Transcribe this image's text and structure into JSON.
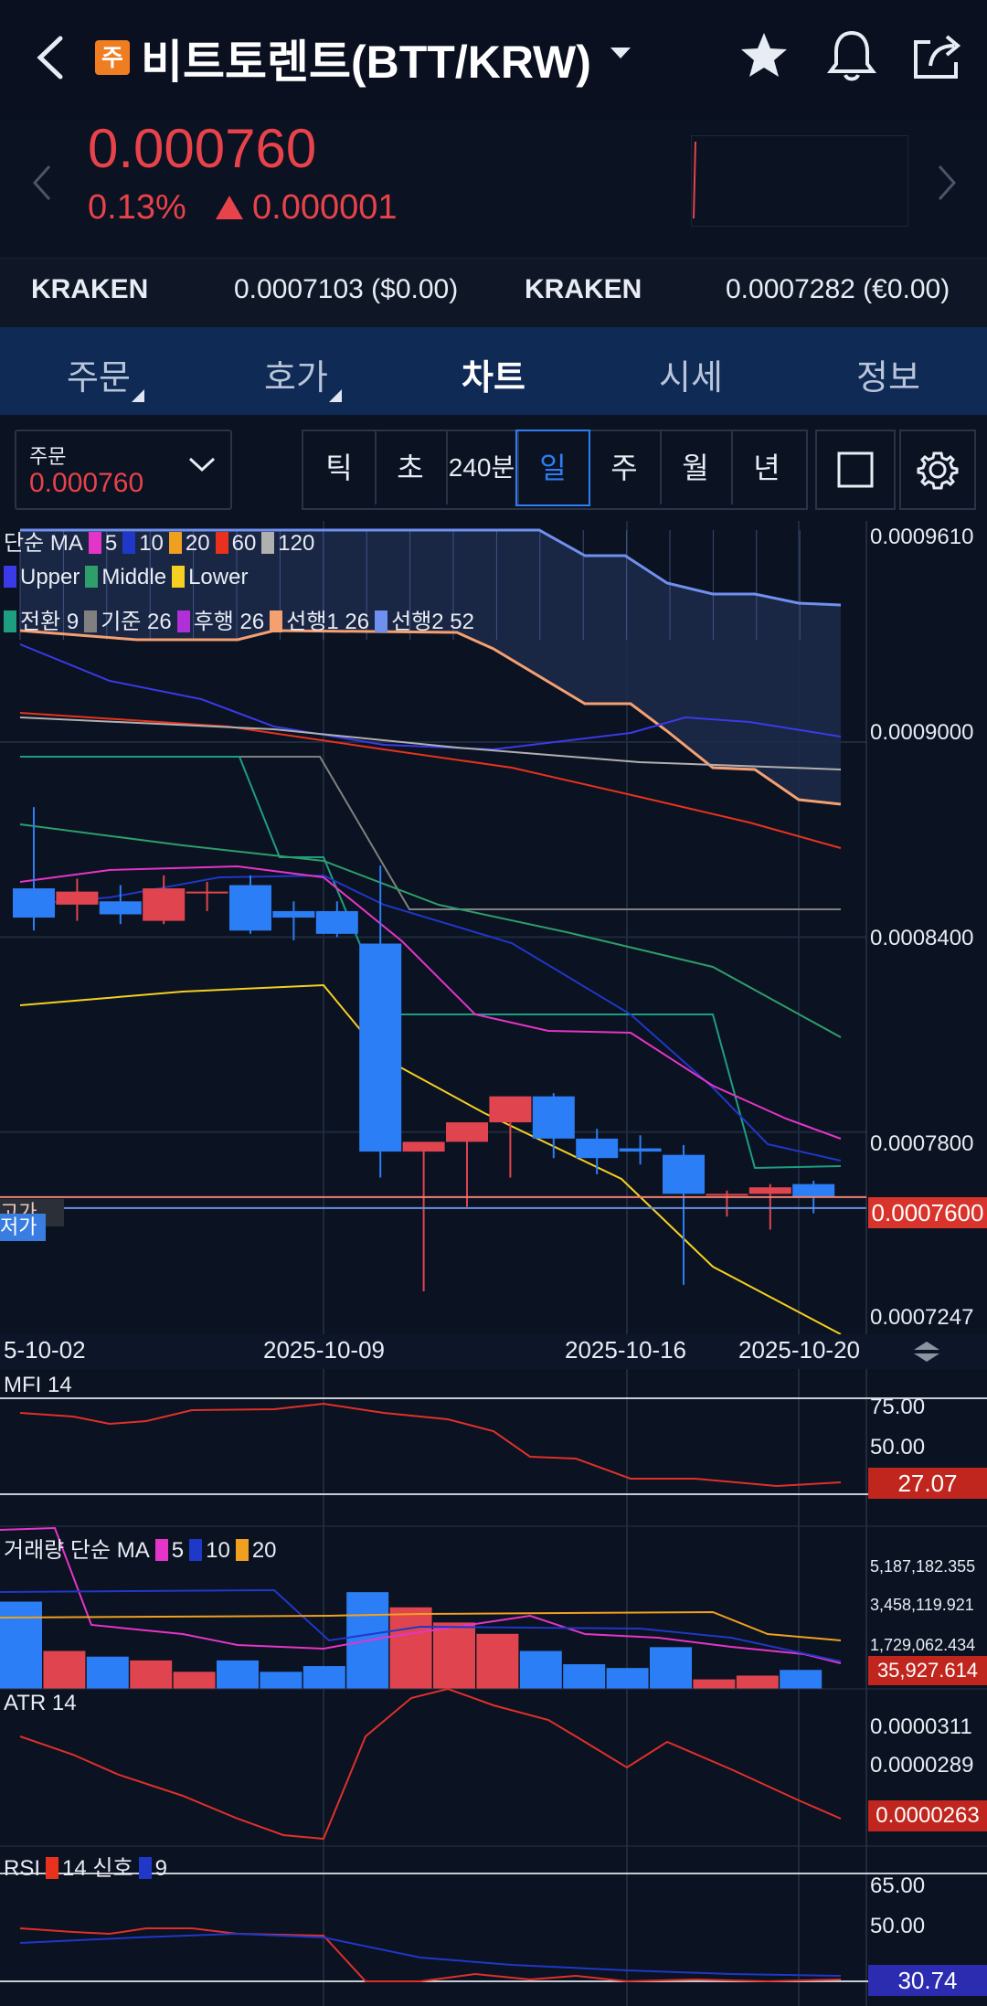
{
  "header": {
    "badge": "주",
    "title": "비트토렌트(BTT/KRW)",
    "icons": [
      "back-icon",
      "dropdown-icon",
      "star-icon",
      "bell-icon",
      "share-icon"
    ]
  },
  "price": {
    "current": "0.000760",
    "change_pct": "0.13%",
    "change_abs": "0.000001",
    "color_up": "#e8424a"
  },
  "exchanges": [
    {
      "name": "KRAKEN",
      "value": "0.0007103 ($0.00)"
    },
    {
      "name": "KRAKEN",
      "value": "0.0007282 (€0.00)"
    }
  ],
  "tabs": [
    "주문",
    "호가",
    "차트",
    "시세",
    "정보"
  ],
  "active_tab": "차트",
  "order": {
    "label": "주문",
    "value": "0.000760"
  },
  "periods": [
    "틱",
    "초",
    "240분",
    "일",
    "주",
    "월",
    "년"
  ],
  "selected_period": "일",
  "legend": {
    "ma_title": "단순 MA",
    "ma": [
      {
        "label": "5",
        "color": "#e535c8"
      },
      {
        "label": "10",
        "color": "#1f38c8"
      },
      {
        "label": "20",
        "color": "#f0a020"
      },
      {
        "label": "60",
        "color": "#e8321e"
      },
      {
        "label": "120",
        "color": "#b0b0b0"
      }
    ],
    "bb": [
      {
        "label": "Upper",
        "color": "#3a3ae8"
      },
      {
        "label": "Middle",
        "color": "#2e9e6a"
      },
      {
        "label": "Lower",
        "color": "#f5d020"
      }
    ],
    "ichi": [
      {
        "label": "전환 9",
        "color": "#1e9e80"
      },
      {
        "label": "기준 26",
        "color": "#808080"
      },
      {
        "label": "후행 26",
        "color": "#b030d8"
      },
      {
        "label": "선행1 26",
        "color": "#f5a070"
      },
      {
        "label": "선행2 52",
        "color": "#7090f0"
      }
    ]
  },
  "price_axis": [
    "0.0009610",
    "0.0009000",
    "0.0008400",
    "0.0007800",
    "0.0007247"
  ],
  "current_price_label": "0.0007600",
  "marker_labels": {
    "high": "고가",
    "low": "저가"
  },
  "date_axis": [
    "5-10-02",
    "2025-10-09",
    "2025-10-16",
    "2025-10-20"
  ],
  "indicators": {
    "mfi": {
      "title": "MFI 14",
      "levels": [
        "75.00",
        "50.00"
      ],
      "current": "27.07"
    },
    "volume": {
      "title": "거래량 단순 MA",
      "ma": [
        {
          "label": "5",
          "color": "#e535c8"
        },
        {
          "label": "10",
          "color": "#1f38c8"
        },
        {
          "label": "20",
          "color": "#f0a020"
        }
      ],
      "levels": [
        "5,187,182.355",
        "3,458,119.921",
        "1,729,062.434"
      ],
      "current": "35,927.614"
    },
    "atr": {
      "title": "ATR 14",
      "levels": [
        "0.0000311",
        "0.0000289"
      ],
      "current": "0.0000263"
    },
    "rsi": {
      "title": "RSI",
      "parts": [
        "14",
        "신호",
        "9"
      ],
      "levels": [
        "65.00",
        "50.00"
      ],
      "current": "30.74"
    }
  },
  "chart_data": {
    "type": "candlestick",
    "candles": [
      {
        "o": 0.000855,
        "h": 0.00088,
        "l": 0.000842,
        "c": 0.000846
      },
      {
        "o": 0.00085,
        "h": 0.000858,
        "l": 0.000845,
        "c": 0.000854
      },
      {
        "o": 0.000851,
        "h": 0.000856,
        "l": 0.000844,
        "c": 0.000847
      },
      {
        "o": 0.000845,
        "h": 0.000859,
        "l": 0.000844,
        "c": 0.000855
      },
      {
        "o": 0.000854,
        "h": 0.000857,
        "l": 0.000848,
        "c": 0.000854
      },
      {
        "o": 0.000856,
        "h": 0.000859,
        "l": 0.000841,
        "c": 0.000842
      },
      {
        "o": 0.000848,
        "h": 0.000851,
        "l": 0.000839,
        "c": 0.000846
      },
      {
        "o": 0.000848,
        "h": 0.000851,
        "l": 0.00084,
        "c": 0.000841
      },
      {
        "o": 0.000838,
        "h": 0.000862,
        "l": 0.000766,
        "c": 0.000774
      },
      {
        "o": 0.000774,
        "h": 0.000777,
        "l": 0.000731,
        "c": 0.000777
      },
      {
        "o": 0.000777,
        "h": 0.000782,
        "l": 0.000757,
        "c": 0.000783
      },
      {
        "o": 0.000783,
        "h": 0.00079,
        "l": 0.000766,
        "c": 0.000791
      },
      {
        "o": 0.000791,
        "h": 0.000792,
        "l": 0.000772,
        "c": 0.000778
      },
      {
        "o": 0.000778,
        "h": 0.000781,
        "l": 0.000767,
        "c": 0.000772
      },
      {
        "o": 0.000775,
        "h": 0.000779,
        "l": 0.00077,
        "c": 0.000774
      },
      {
        "o": 0.000773,
        "h": 0.000776,
        "l": 0.000733,
        "c": 0.000761
      },
      {
        "o": 0.000761,
        "h": 0.000762,
        "l": 0.000754,
        "c": 0.000761
      },
      {
        "o": 0.000761,
        "h": 0.000764,
        "l": 0.00075,
        "c": 0.000763
      },
      {
        "o": 0.000764,
        "h": 0.000765,
        "l": 0.000755,
        "c": 0.00076
      }
    ],
    "volume": [
      4.6,
      2.0,
      1.7,
      1.5,
      0.9,
      1.5,
      0.9,
      1.2,
      5.1,
      4.3,
      3.5,
      2.9,
      2.0,
      1.3,
      1.1,
      2.2,
      0.5,
      0.7,
      1.0
    ],
    "volume_unit": "million",
    "price_range": [
      0.000722,
      0.000963
    ]
  }
}
